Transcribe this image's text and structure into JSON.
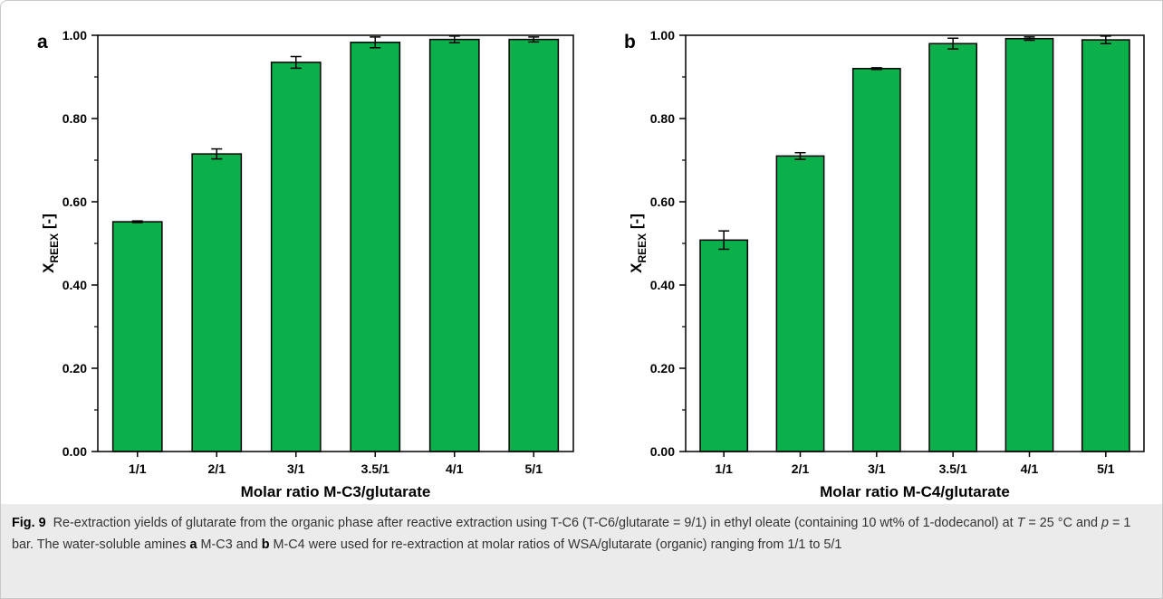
{
  "chart_data": [
    {
      "type": "bar",
      "panel_label": "a",
      "ylabel_parts": [
        "X",
        "REEX",
        " [-]"
      ],
      "xlabel": "Molar ratio M-C3/glutarate",
      "categories": [
        "1/1",
        "2/1",
        "3/1",
        "3.5/1",
        "4/1",
        "5/1"
      ],
      "values": [
        0.552,
        0.715,
        0.935,
        0.983,
        0.99,
        0.99
      ],
      "errors": [
        0.002,
        0.012,
        0.014,
        0.013,
        0.008,
        0.006
      ],
      "color": "#0bb04b",
      "ylim": [
        0,
        1
      ],
      "yticks": [
        {
          "value": 0,
          "label": "0.00"
        },
        {
          "value": 0.2,
          "label": "0.20"
        },
        {
          "value": 0.4,
          "label": "0.40"
        },
        {
          "value": 0.6,
          "label": "0.60"
        },
        {
          "value": 0.8,
          "label": "0.80"
        },
        {
          "value": 1,
          "label": "1.00"
        }
      ],
      "yminorticks": [
        0.1,
        0.3,
        0.5,
        0.7,
        0.9
      ]
    },
    {
      "type": "bar",
      "panel_label": "b",
      "ylabel_parts": [
        "X",
        "REEX",
        " [-]"
      ],
      "xlabel": "Molar ratio M-C4/glutarate",
      "categories": [
        "1/1",
        "2/1",
        "3/1",
        "3.5/1",
        "4/1",
        "5/1"
      ],
      "values": [
        0.508,
        0.71,
        0.92,
        0.98,
        0.992,
        0.989
      ],
      "errors": [
        0.022,
        0.008,
        0.002,
        0.013,
        0.004,
        0.009
      ],
      "color": "#0bb04b",
      "ylim": [
        0,
        1
      ],
      "yticks": [
        {
          "value": 0,
          "label": "0.00"
        },
        {
          "value": 0.2,
          "label": "0.20"
        },
        {
          "value": 0.4,
          "label": "0.40"
        },
        {
          "value": 0.6,
          "label": "0.60"
        },
        {
          "value": 0.8,
          "label": "0.80"
        },
        {
          "value": 1,
          "label": "1.00"
        }
      ],
      "yminorticks": [
        0.1,
        0.3,
        0.5,
        0.7,
        0.9
      ]
    }
  ],
  "caption": {
    "label": "Fig. 9",
    "runs": [
      "Re-extraction yields of glutarate from the organic phase after reactive extraction using T-C6 (T-C6/glutarate = 9/1) in ethyl oleate (containing 10 wt% of 1-dodecanol) at ",
      "T",
      " = 25 °C and ",
      "p",
      " = 1 bar. The water-soluble amines ",
      "a",
      " M-C3 and ",
      "b",
      " M-C4 were used for re-extraction at molar ratios of WSA/glutarate (organic) ranging from 1/1 to 5/1"
    ]
  }
}
